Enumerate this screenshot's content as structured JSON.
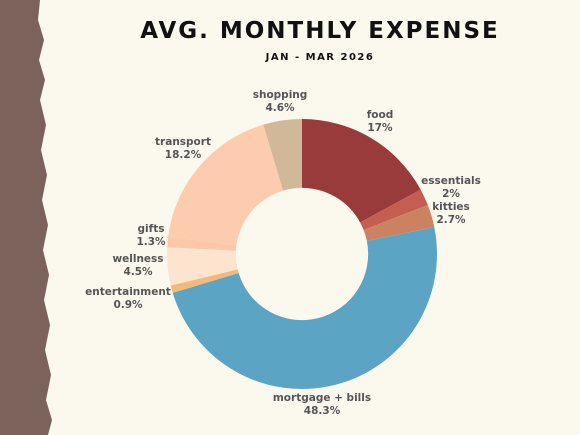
{
  "chart_data": {
    "type": "pie",
    "title": "AVG. MONTHLY EXPENSE",
    "subtitle": "JAN - MAR 2026",
    "categories": [
      "food",
      "essentials",
      "kitties",
      "mortgage + bills",
      "entertainment",
      "wellness",
      "gifts",
      "transport",
      "shopping"
    ],
    "values": [
      17,
      2,
      2.7,
      48.3,
      0.9,
      4.5,
      1.3,
      18.2,
      4.6
    ],
    "value_labels": [
      "17%",
      "2%",
      "2.7%",
      "48.3%",
      "0.9%",
      "4.5%",
      "1.3%",
      "18.2%",
      "4.6%"
    ],
    "colors": [
      "#9a3b3b",
      "#c45e50",
      "#cc8261",
      "#5ba4c4",
      "#f2b978",
      "#fde4cf",
      "#fcc9a8",
      "#fdcbad",
      "#d1b899"
    ],
    "hole_ratio": 0.49,
    "legend": "none"
  }
}
